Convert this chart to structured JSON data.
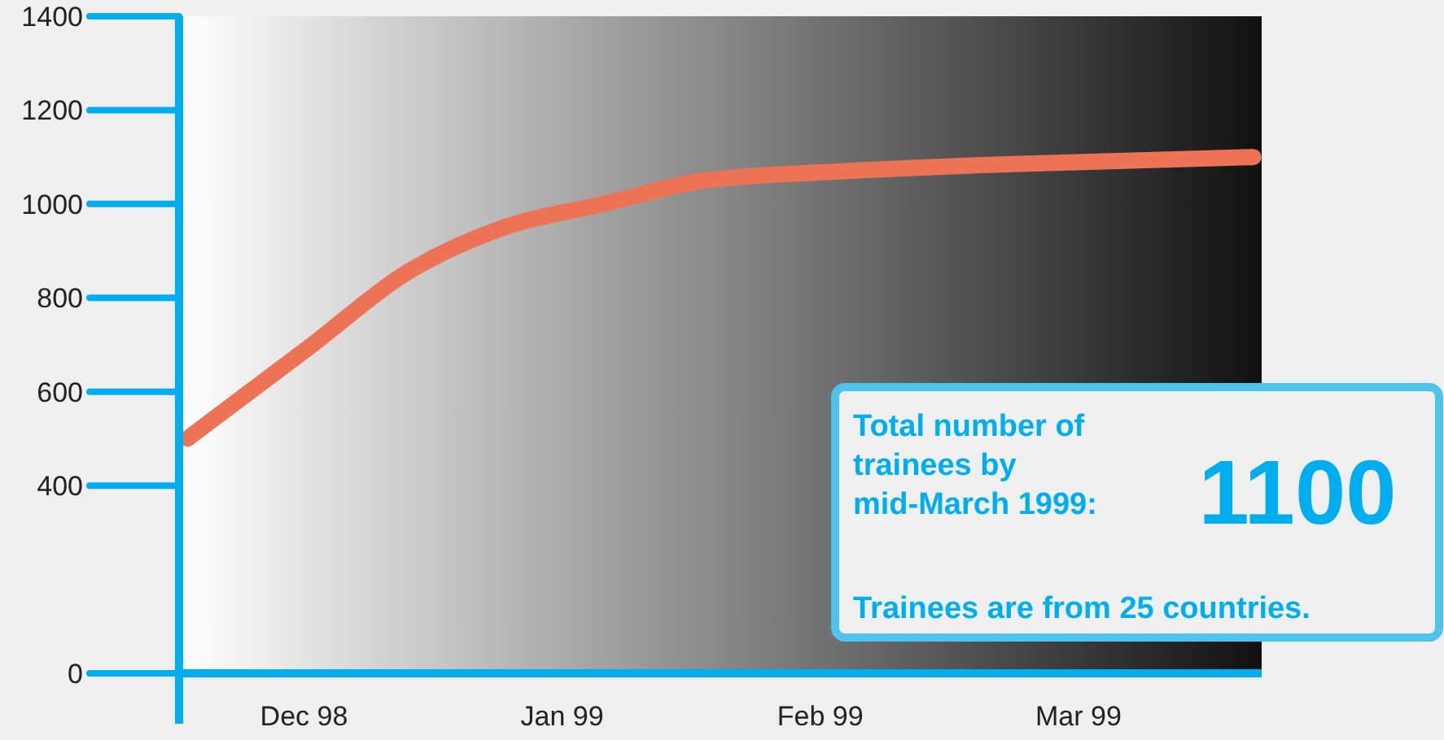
{
  "chart_data": {
    "type": "line",
    "x": [
      "1998-12-01",
      "1998-12-16",
      "1998-12-27",
      "1999-01-08",
      "1999-01-20",
      "1999-02-01",
      "1999-02-18",
      "1999-03-10",
      "1999-04-08"
    ],
    "series": [
      {
        "color": "#ec7356",
        "values": [
          500,
          700,
          850,
          950,
          1000,
          1050,
          1070,
          1085,
          1100
        ]
      }
    ],
    "xlim": [
      "1998-11-30",
      "1999-04-09"
    ],
    "xticks": [
      {
        "value": "1998-11-30",
        "label": null
      },
      {
        "value": "1998-12-15",
        "label": "Dec 98"
      },
      {
        "value": "1999-01-15",
        "label": "Jan 99"
      },
      {
        "value": "1999-02-15",
        "label": "Feb 99"
      },
      {
        "value": "1999-03-18",
        "label": "Mar 99"
      }
    ],
    "ylim": [
      0,
      1400
    ],
    "yticks": [
      0,
      400,
      600,
      800,
      1000,
      1200,
      1400
    ],
    "annotations": [
      "Total number of trainees by mid-March 1999:",
      "1100",
      "Trainees are from 25 countries."
    ],
    "grid": false
  }
}
